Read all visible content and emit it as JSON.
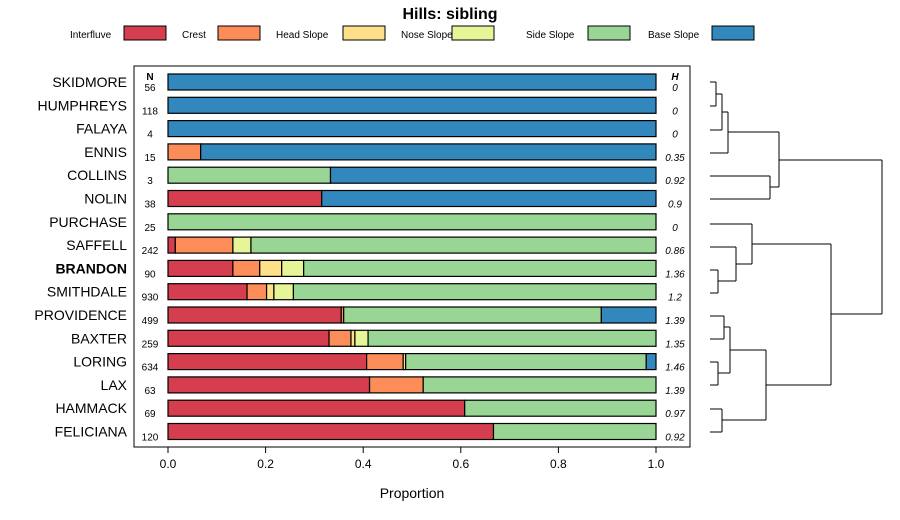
{
  "chart_data": {
    "type": "bar",
    "orientation": "horizontal",
    "stacked": true,
    "title": "Hills: sibling",
    "xlabel": "Proportion",
    "xlim": [
      0,
      1
    ],
    "xticks": [
      "0.0",
      "0.2",
      "0.4",
      "0.6",
      "0.8",
      "1.0"
    ],
    "n_header": "N",
    "h_header": "H",
    "legend": [
      {
        "name": "Interfluve",
        "color": "#d53e4f"
      },
      {
        "name": "Crest",
        "color": "#fc8d59"
      },
      {
        "name": "Head Slope",
        "color": "#fee08b"
      },
      {
        "name": "Nose Slope",
        "color": "#e6f598"
      },
      {
        "name": "Side Slope",
        "color": "#99d594"
      },
      {
        "name": "Base Slope",
        "color": "#3288bd"
      }
    ],
    "highlight": "BRANDON",
    "categories": [
      "SKIDMORE",
      "HUMPHREYS",
      "FALAYA",
      "ENNIS",
      "COLLINS",
      "NOLIN",
      "PURCHASE",
      "SAFFELL",
      "BRANDON",
      "SMITHDALE",
      "PROVIDENCE",
      "BAXTER",
      "LORING",
      "LAX",
      "HAMMACK",
      "FELICIANA"
    ],
    "n": [
      "56",
      "118",
      "4",
      "15",
      "3",
      "38",
      "25",
      "242",
      "90",
      "930",
      "499",
      "259",
      "634",
      "63",
      "69",
      "120"
    ],
    "h": [
      "0",
      "0",
      "0",
      "0.35",
      "0.92",
      "0.9",
      "0",
      "0.86",
      "1.36",
      "1.2",
      "1.39",
      "1.35",
      "1.46",
      "1.39",
      "0.97",
      "0.92"
    ],
    "series": [
      {
        "name": "Interfluve",
        "values": [
          0,
          0,
          0,
          0,
          0,
          0.315,
          0,
          0.015,
          0.133,
          0.162,
          0.355,
          0.33,
          0.407,
          0.413,
          0.608,
          0.667
        ]
      },
      {
        "name": "Crest",
        "values": [
          0,
          0,
          0,
          0.067,
          0,
          0,
          0,
          0.118,
          0.055,
          0.04,
          0.005,
          0.045,
          0.075,
          0.11,
          0,
          0
        ]
      },
      {
        "name": "Head Slope",
        "values": [
          0,
          0,
          0,
          0,
          0,
          0,
          0,
          0,
          0.045,
          0.015,
          0,
          0.008,
          0.005,
          0,
          0,
          0
        ]
      },
      {
        "name": "Nose Slope",
        "values": [
          0,
          0,
          0,
          0,
          0,
          0,
          0,
          0.037,
          0.045,
          0.04,
          0,
          0.027,
          0,
          0,
          0,
          0
        ]
      },
      {
        "name": "Side Slope",
        "values": [
          0,
          0,
          0,
          0,
          0.333,
          0,
          1,
          0.83,
          0.722,
          0.743,
          0.528,
          0.59,
          0.493,
          0.477,
          0.392,
          0.333
        ]
      },
      {
        "name": "Base Slope",
        "values": [
          1,
          1,
          1,
          0.933,
          0.667,
          0.685,
          0,
          0,
          0,
          0,
          0.112,
          0,
          0.02,
          0,
          0,
          0
        ]
      }
    ],
    "dendrogram": "hierarchical clustering of the 16 rows (leaf order follows the category order)"
  }
}
